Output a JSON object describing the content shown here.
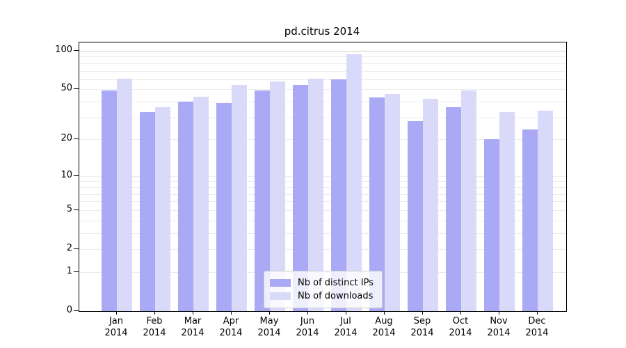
{
  "chart_data": {
    "type": "bar",
    "title": "pd.citrus 2014",
    "categories": [
      "Jan 2014",
      "Feb 2014",
      "Mar 2014",
      "Apr 2014",
      "May 2014",
      "Jun 2014",
      "Jul 2014",
      "Aug 2014",
      "Sep 2014",
      "Oct 2014",
      "Nov 2014",
      "Dec 2014"
    ],
    "series": [
      {
        "name": "Nb of distinct IPs",
        "color": "#a9a9f5",
        "values": [
          49,
          33,
          40,
          39,
          49,
          54,
          60,
          43,
          28,
          36,
          20,
          24
        ]
      },
      {
        "name": "Nb of downloads",
        "color": "#d9d9fa",
        "values": [
          61,
          36,
          44,
          54,
          58,
          61,
          94,
          46,
          42,
          49,
          33,
          34
        ]
      }
    ],
    "y_scale": "log1p",
    "y_ticks": [
      100,
      50,
      20,
      10,
      5,
      2,
      1,
      0
    ],
    "ylim": [
      0,
      110
    ],
    "grid": true,
    "legend_position": "bottom-center",
    "axis_color": "#000000",
    "grid_minor_color": "#ececec",
    "grid_major_color": "#cfcfcf"
  }
}
